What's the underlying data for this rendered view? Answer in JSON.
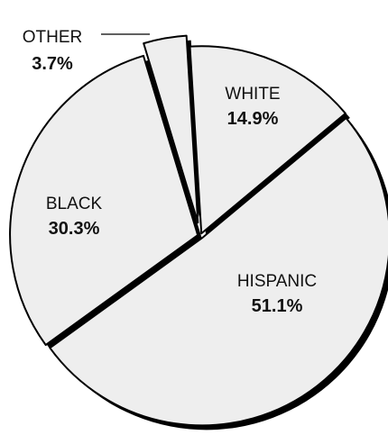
{
  "chart_data": {
    "type": "pie",
    "categories": [
      "WHITE",
      "HISPANIC",
      "BLACK",
      "OTHER"
    ],
    "values": [
      14.9,
      51.1,
      30.3,
      3.7
    ],
    "value_labels": [
      "14.9%",
      "51.1%",
      "30.3%",
      "3.7%"
    ],
    "exploded": [
      "OTHER"
    ],
    "title": "",
    "legend": "none"
  },
  "colors": {
    "slice_fill": "#eeeeee",
    "outline": "#000000",
    "background": "#ffffff"
  }
}
